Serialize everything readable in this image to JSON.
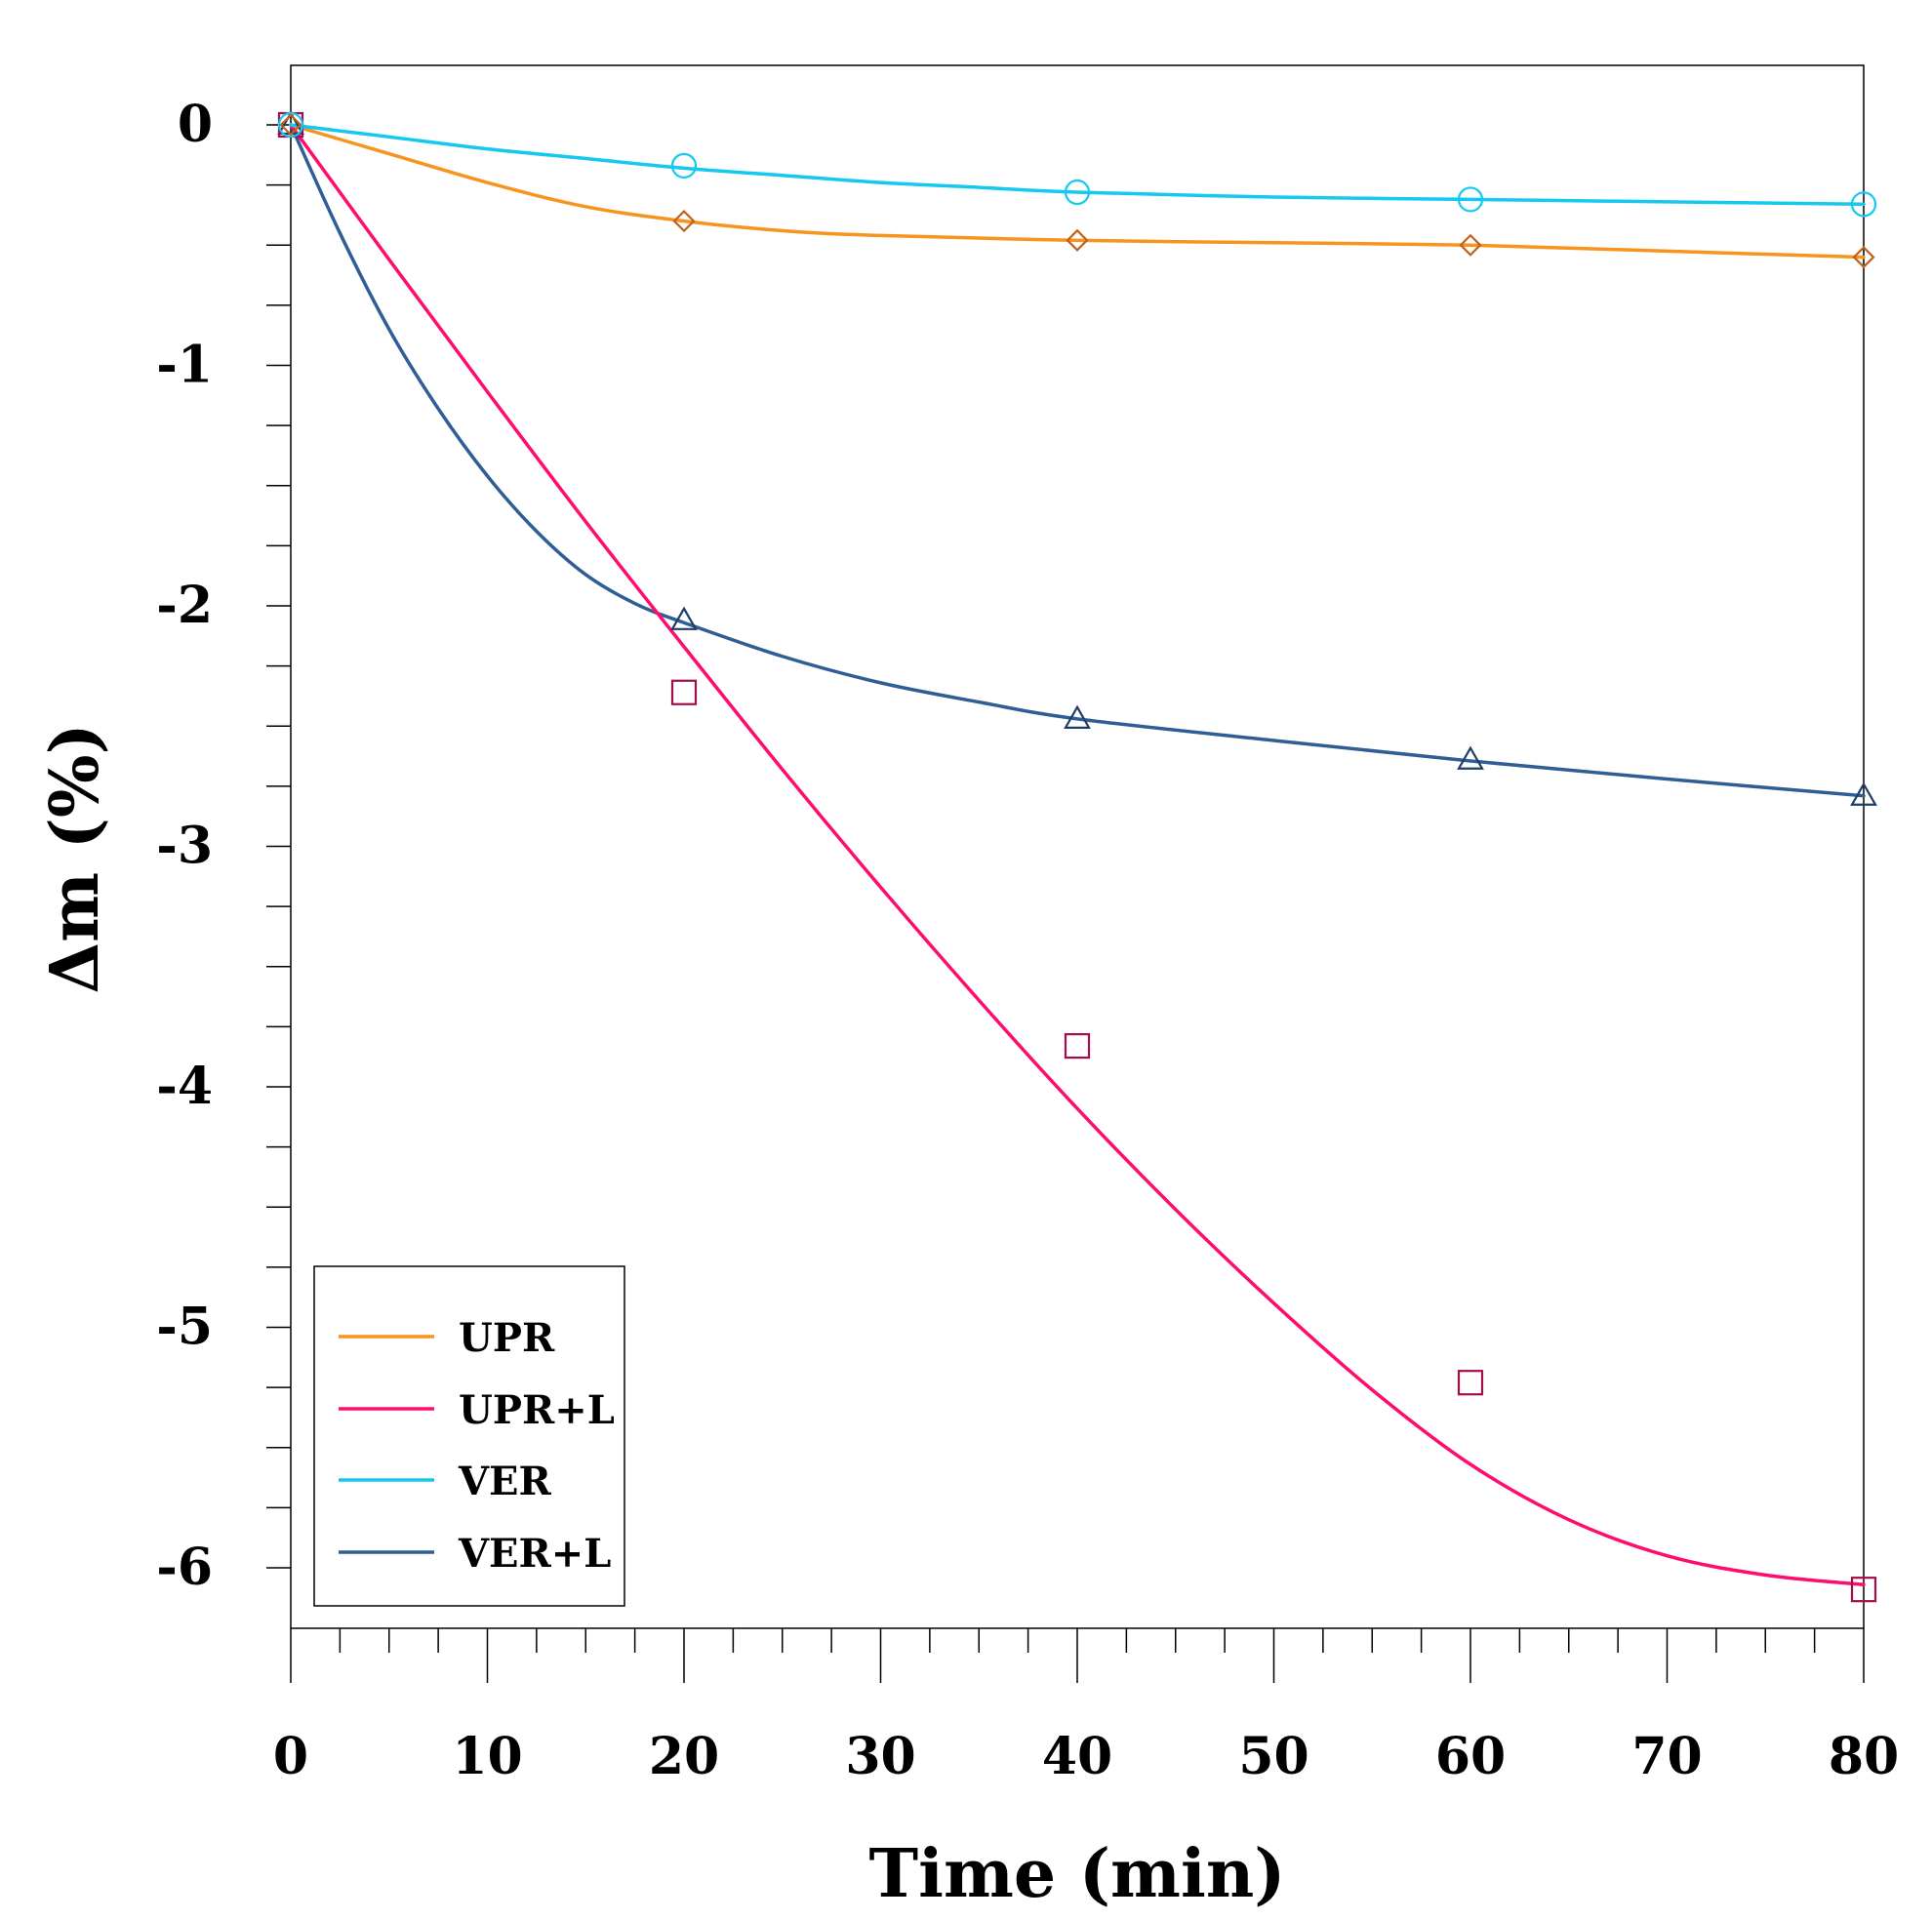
{
  "chart_data": {
    "type": "line",
    "title": "",
    "xlabel": "Time (min)",
    "ylabel": "Δm (%)",
    "xlim": [
      0,
      80
    ],
    "ylim": [
      -6.25,
      0.25
    ],
    "xticks": [
      0,
      10,
      20,
      30,
      40,
      50,
      60,
      70,
      80
    ],
    "xtick_labels": [
      "0",
      "10",
      "20",
      "30",
      "40",
      "50",
      "60",
      "70",
      "80"
    ],
    "yticks": [
      0,
      -1,
      -2,
      -3,
      -4,
      -5,
      -6
    ],
    "ytick_labels": [
      "0",
      "-1",
      "-2",
      "-3",
      "-4",
      "-5",
      "-6"
    ],
    "grid": false,
    "legend_position": "bottom-left",
    "x": [
      0,
      20,
      40,
      60,
      80
    ],
    "series": [
      {
        "name": "UPR",
        "color": "#F7941D",
        "marker_color": "#C0601A",
        "marker": "diamond",
        "values": [
          0,
          -0.4,
          -0.48,
          -0.5,
          -0.55
        ],
        "curve": [
          [
            0,
            0
          ],
          [
            5,
            -0.12
          ],
          [
            10,
            -0.24
          ],
          [
            15,
            -0.34
          ],
          [
            20,
            -0.4
          ],
          [
            25,
            -0.44
          ],
          [
            30,
            -0.46
          ],
          [
            40,
            -0.48
          ],
          [
            50,
            -0.49
          ],
          [
            60,
            -0.5
          ],
          [
            70,
            -0.525
          ],
          [
            80,
            -0.55
          ]
        ]
      },
      {
        "name": "UPR+L",
        "color": "#FF0D6E",
        "marker_color": "#A30D4B",
        "marker": "square",
        "values": [
          0,
          -2.36,
          -3.83,
          -5.23,
          -6.09
        ],
        "curve": [
          [
            0,
            0
          ],
          [
            5,
            -0.56
          ],
          [
            10,
            -1.11
          ],
          [
            15,
            -1.65
          ],
          [
            20,
            -2.17
          ],
          [
            25,
            -2.68
          ],
          [
            30,
            -3.17
          ],
          [
            35,
            -3.64
          ],
          [
            40,
            -4.09
          ],
          [
            45,
            -4.51
          ],
          [
            50,
            -4.9
          ],
          [
            55,
            -5.26
          ],
          [
            60,
            -5.57
          ],
          [
            65,
            -5.8
          ],
          [
            70,
            -5.95
          ],
          [
            75,
            -6.03
          ],
          [
            80,
            -6.07
          ]
        ]
      },
      {
        "name": "VER",
        "color": "#14C8F0",
        "marker_color": "#14C8F0",
        "marker": "circle",
        "values": [
          0,
          -0.17,
          -0.28,
          -0.31,
          -0.33
        ],
        "curve": [
          [
            0,
            0
          ],
          [
            5,
            -0.05
          ],
          [
            10,
            -0.1
          ],
          [
            15,
            -0.14
          ],
          [
            20,
            -0.18
          ],
          [
            25,
            -0.21
          ],
          [
            30,
            -0.24
          ],
          [
            35,
            -0.26
          ],
          [
            40,
            -0.28
          ],
          [
            50,
            -0.3
          ],
          [
            60,
            -0.31
          ],
          [
            70,
            -0.32
          ],
          [
            80,
            -0.33
          ]
        ]
      },
      {
        "name": "VER+L",
        "color": "#2F5E96",
        "marker_color": "#1F3D66",
        "marker": "triangle",
        "values": [
          0,
          -2.06,
          -2.47,
          -2.64,
          -2.79
        ],
        "curve": [
          [
            0,
            0
          ],
          [
            2.5,
            -0.45
          ],
          [
            5,
            -0.85
          ],
          [
            7.5,
            -1.18
          ],
          [
            10,
            -1.46
          ],
          [
            12.5,
            -1.69
          ],
          [
            15,
            -1.87
          ],
          [
            17.5,
            -1.99
          ],
          [
            20,
            -2.07
          ],
          [
            25,
            -2.21
          ],
          [
            30,
            -2.32
          ],
          [
            35,
            -2.4
          ],
          [
            40,
            -2.47
          ],
          [
            50,
            -2.56
          ],
          [
            60,
            -2.645
          ],
          [
            70,
            -2.72
          ],
          [
            80,
            -2.79
          ]
        ]
      }
    ]
  }
}
